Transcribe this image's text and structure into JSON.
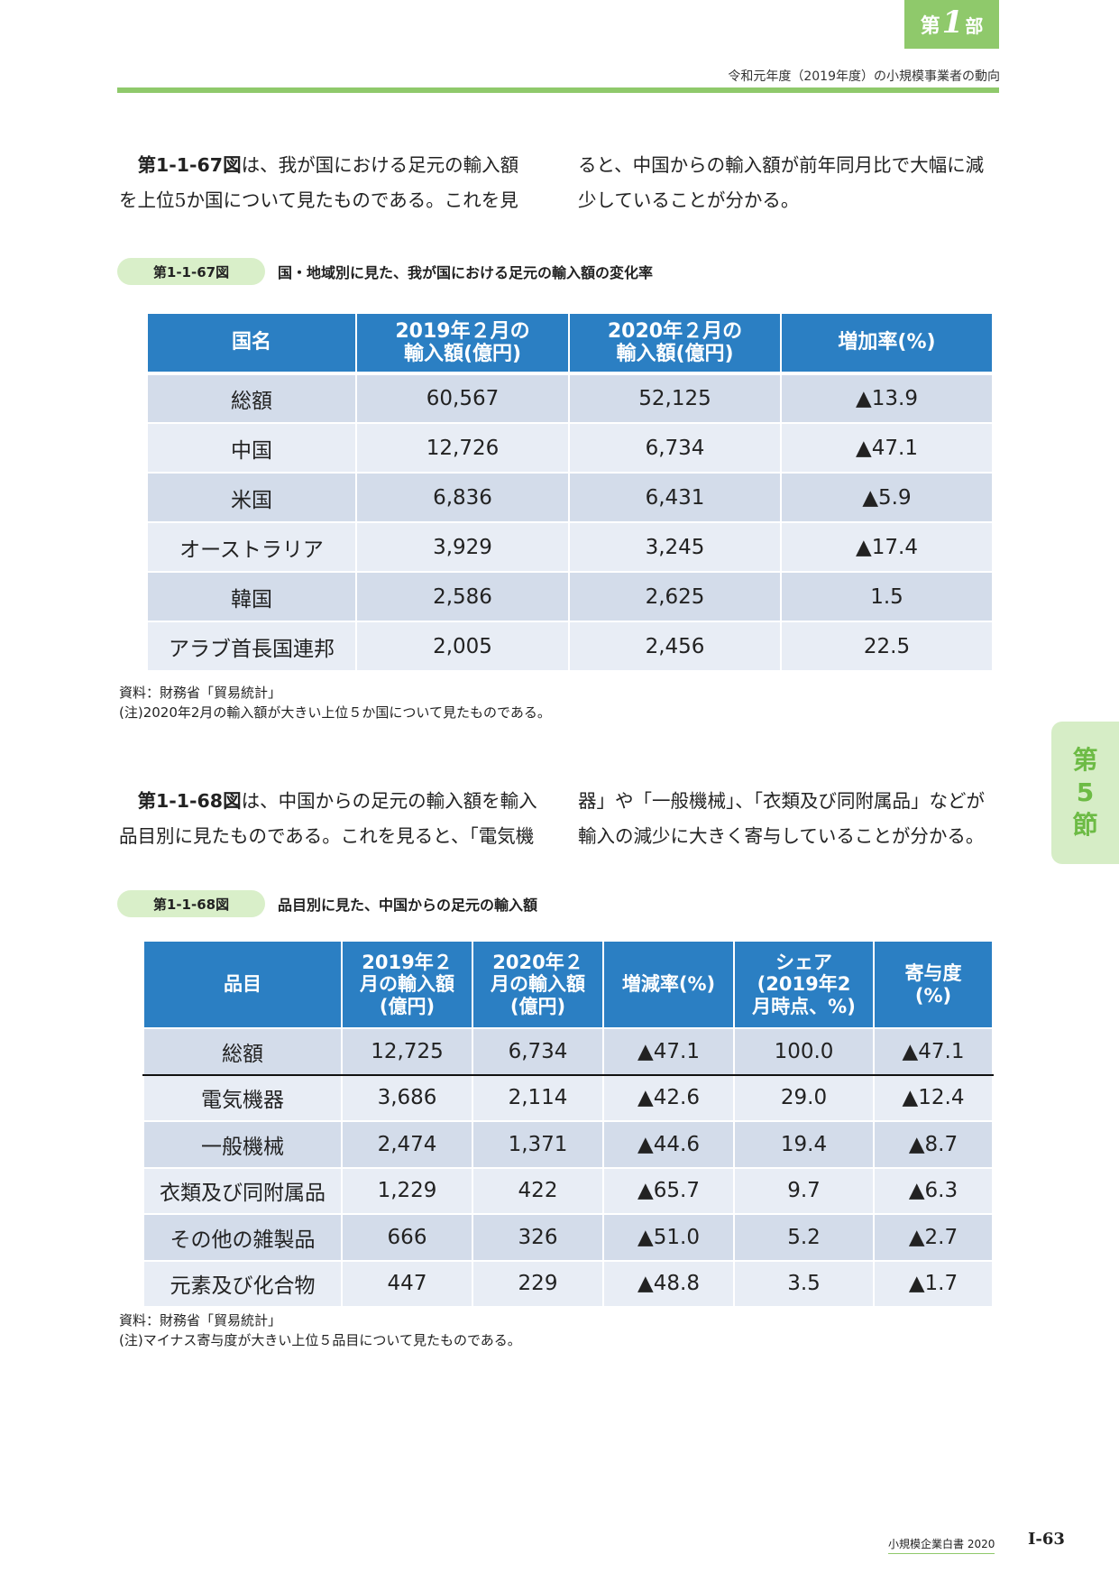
{
  "header": {
    "part_dai": "第",
    "part_num": "1",
    "part_bu": "部",
    "running_head": "令和元年度（2019年度）の小規模事業者の動向"
  },
  "para1": {
    "ref": "第1-1-67図",
    "left_line1": "は、我が国における足元の輸入額",
    "left_line2": "を上位5か国について見たものである。これを見",
    "right_line1": "ると、中国からの輸入額が前年同月比で大幅に減",
    "right_line2": "少していることが分かる。"
  },
  "figure1": {
    "label": "第1-1-67図",
    "title": "国・地域別に見た、我が国における足元の輸入額の変化率",
    "headers": [
      "国名",
      "2019年２月の",
      "輸入額(億円)",
      "2020年２月の",
      "輸入額(億円)",
      "増加率(%)"
    ],
    "rows": [
      [
        "総額",
        "60,567",
        "52,125",
        "▲13.9"
      ],
      [
        "中国",
        "12,726",
        "6,734",
        "▲47.1"
      ],
      [
        "米国",
        "6,836",
        "6,431",
        "▲5.9"
      ],
      [
        "オーストラリア",
        "3,929",
        "3,245",
        "▲17.4"
      ],
      [
        "韓国",
        "2,586",
        "2,625",
        "1.5"
      ],
      [
        "アラブ首長国連邦",
        "2,005",
        "2,456",
        "22.5"
      ]
    ],
    "source": "資料：財務省「貿易統計」",
    "note": "(注)2020年2月の輸入額が大きい上位５か国について見たものである。"
  },
  "para2": {
    "ref": "第1-1-68図",
    "left_line1": "は、中国からの足元の輸入額を輸入",
    "left_line2": "品目別に見たものである。これを見ると、「電気機",
    "right_line1": "器」や「一般機械」、「衣類及び同附属品」などが",
    "right_line2": "輸入の減少に大きく寄与していることが分かる。"
  },
  "figure2": {
    "label": "第1-1-68図",
    "title": "品目別に見た、中国からの足元の輸入額",
    "headers": {
      "item": "品目",
      "y2019": [
        "2019年２",
        "月の輸入額",
        "(億円)"
      ],
      "y2020": [
        "2020年２",
        "月の輸入額",
        "(億円)"
      ],
      "rate": "増減率(%)",
      "share": [
        "シェア",
        "(2019年2",
        "月時点、%)"
      ],
      "contrib": [
        "寄与度",
        "(%)"
      ]
    },
    "rows": [
      [
        "総額",
        "12,725",
        "6,734",
        "▲47.1",
        "100.0",
        "▲47.1"
      ],
      [
        "電気機器",
        "3,686",
        "2,114",
        "▲42.6",
        "29.0",
        "▲12.4"
      ],
      [
        "一般機械",
        "2,474",
        "1,371",
        "▲44.6",
        "19.4",
        "▲8.7"
      ],
      [
        "衣類及び同附属品",
        "1,229",
        "422",
        "▲65.7",
        "9.7",
        "▲6.3"
      ],
      [
        "その他の雑製品",
        "666",
        "326",
        "▲51.0",
        "5.2",
        "▲2.7"
      ],
      [
        "元素及び化合物",
        "447",
        "229",
        "▲48.8",
        "3.5",
        "▲1.7"
      ]
    ],
    "source": "資料：財務省「貿易統計」",
    "note": "(注)マイナス寄与度が大きい上位５品目について見たものである。"
  },
  "side_tab": {
    "dai": "第",
    "num": "5",
    "setsu": "節"
  },
  "footer": {
    "book": "小規模企業白書 2020",
    "page": "Ⅰ-63"
  }
}
